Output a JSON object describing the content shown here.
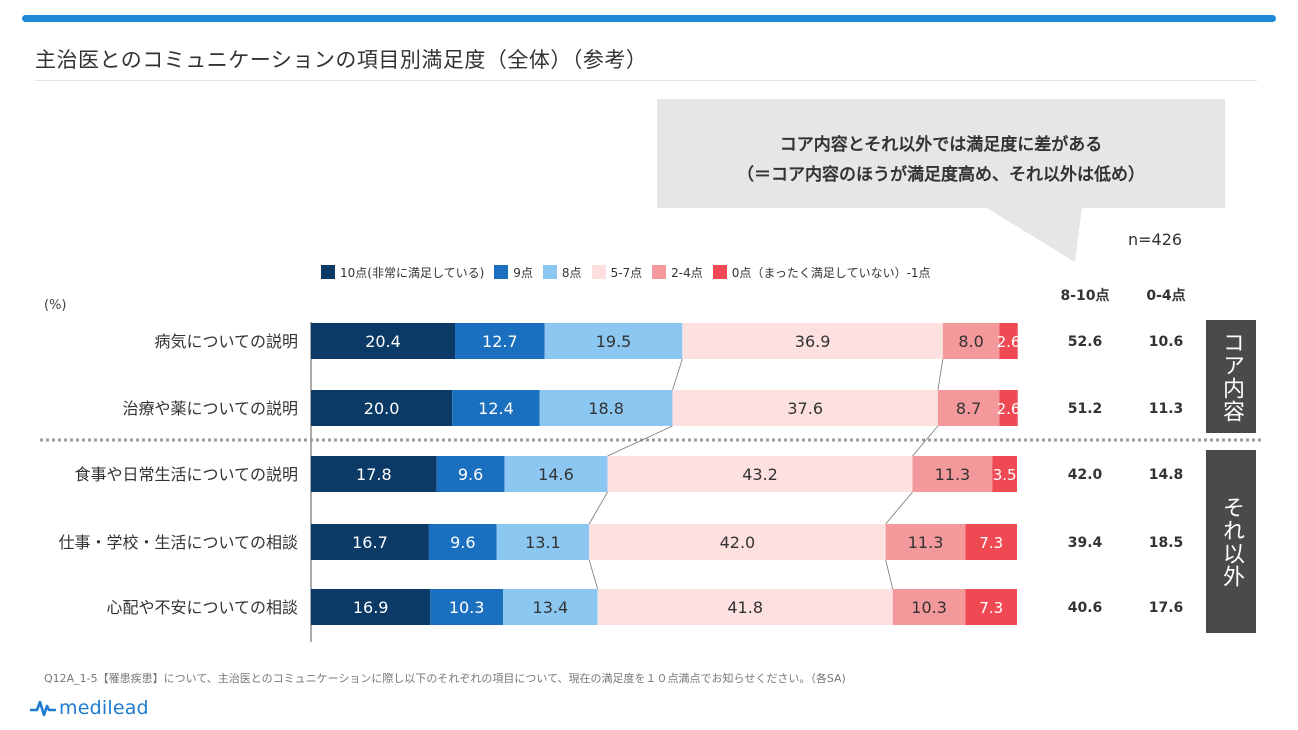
{
  "header": {
    "title": "主治医とのコミュニケーションの項目別満足度（全体）（参考）"
  },
  "callout": {
    "line1": "コア内容とそれ以外では満足度に差がある",
    "line2": "（＝コア内容のほうが満足度高め、それ以外は低め）"
  },
  "n_label": "n=426",
  "pct_label": "(%)",
  "summary_headers": [
    "8-10点",
    "0-4点"
  ],
  "groups": [
    {
      "label": "コア内容"
    },
    {
      "label": "それ以外"
    }
  ],
  "footnote": "Q12A_1-5【罹患疾患】について、主治医とのコミュニケーションに際し以下のそれぞれの項目について、現在の満足度を１０点満点でお知らせください。（各SA)",
  "logo": {
    "text": "medilead"
  },
  "colors": {
    "accent": "#1e88d8",
    "seg": [
      "#0b3a66",
      "#1a6fbf",
      "#8cc7f2",
      "#fde0e0",
      "#f4999b",
      "#ef4a54"
    ],
    "text_dark_bg": "#ffffff",
    "text_light_bg": "#333333"
  },
  "chart_data": {
    "type": "bar",
    "orientation": "horizontal",
    "stacked": "100%",
    "unit": "%",
    "xlim": [
      0,
      100
    ],
    "legend_placement": "top",
    "categories": [
      "病気についての説明",
      "治療や薬についての説明",
      "食事や日常生活についての説明",
      "仕事・学校・生活についての相談",
      "心配や不安についての相談"
    ],
    "series": [
      {
        "name": "10点(非常に満足している)",
        "values": [
          20.4,
          20.0,
          17.8,
          16.7,
          16.9
        ]
      },
      {
        "name": "9点",
        "values": [
          12.7,
          12.4,
          9.6,
          9.6,
          10.3
        ]
      },
      {
        "name": "8点",
        "values": [
          19.5,
          18.8,
          14.6,
          13.1,
          13.4
        ]
      },
      {
        "name": "5-7点",
        "values": [
          36.9,
          37.6,
          43.2,
          42.0,
          41.8
        ]
      },
      {
        "name": "2-4点",
        "values": [
          8.0,
          8.7,
          11.3,
          11.3,
          10.3
        ]
      },
      {
        "name": "0点（まったく満足していない）-1点",
        "values": [
          2.6,
          2.6,
          3.5,
          7.3,
          7.3
        ]
      }
    ],
    "summary": {
      "8-10点": [
        52.6,
        51.2,
        42.0,
        39.4,
        40.6
      ],
      "0-4点": [
        10.6,
        11.3,
        14.8,
        18.5,
        17.6
      ]
    }
  }
}
